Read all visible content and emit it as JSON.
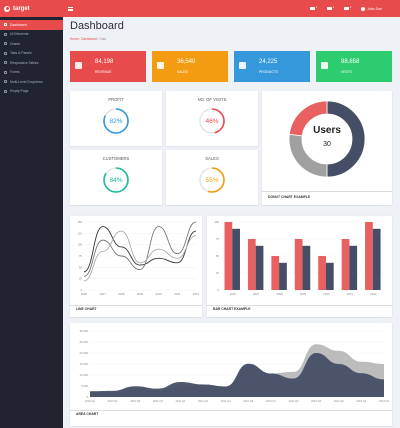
{
  "app": {
    "brand": "target",
    "user_name": "John Doe"
  },
  "sidebar": {
    "items": [
      {
        "label": "Dashboard",
        "active": true
      },
      {
        "label": "UI Elements"
      },
      {
        "label": "Charts"
      },
      {
        "label": "Tabs & Panels"
      },
      {
        "label": "Responsive Tables"
      },
      {
        "label": "Forms"
      },
      {
        "label": "Multi-Level Dropdown"
      },
      {
        "label": "Empty Page"
      }
    ]
  },
  "page": {
    "title": "Dashboard",
    "breadcrumb": [
      "Home",
      "Dashboard",
      "Data"
    ]
  },
  "stats": [
    {
      "value": "84,198",
      "label": "REVENUE",
      "color": "#e84b4b",
      "icon": "revenue-icon"
    },
    {
      "value": "36,540",
      "label": "SALES",
      "color": "#f39c12",
      "icon": "cart-icon"
    },
    {
      "value": "24,225",
      "label": "PRODUCTS",
      "color": "#3498db",
      "icon": "products-icon"
    },
    {
      "value": "88,658",
      "label": "VISITS",
      "color": "#2ecc71",
      "icon": "visits-icon"
    }
  ],
  "gauges": [
    {
      "title": "PROFIT",
      "value": 82,
      "display": "82%",
      "color": "#3498db"
    },
    {
      "title": "NO. OF VISITS",
      "value": 46,
      "display": "46%",
      "color": "#e84b4b"
    },
    {
      "title": "CUSTOMERS",
      "value": 84,
      "display": "84%",
      "color": "#1abc9c"
    },
    {
      "title": "SALES",
      "value": 55,
      "display": "55%",
      "color": "#f39c12"
    }
  ],
  "donut": {
    "title": "DONUT CHART EXAMPLE",
    "center_label": "Users",
    "center_value": "30",
    "chart_data": {
      "type": "pie",
      "values": [
        50,
        27,
        23
      ],
      "colors": [
        "#454e66",
        "#a0a0a0",
        "#e86060"
      ]
    }
  },
  "line_chart": {
    "title": "LINE CHART",
    "chart_data": {
      "type": "line",
      "x": [
        "2006",
        "2007",
        "2008",
        "2009",
        "2010",
        "2011",
        "2012"
      ],
      "yticks": [
        "0",
        "25",
        "50",
        "75",
        "100",
        "125",
        "150"
      ],
      "ylim": [
        0,
        150
      ],
      "series": [
        {
          "values": [
            40,
            140,
            95,
            55,
            70,
            60,
            130
          ],
          "color": "#333333"
        },
        {
          "values": [
            30,
            110,
            75,
            45,
            140,
            80,
            150
          ],
          "color": "#777777"
        },
        {
          "values": [
            20,
            85,
            130,
            60,
            90,
            70,
            120
          ],
          "color": "#aaaaaa"
        }
      ]
    }
  },
  "bar_chart": {
    "title": "BAR CHART EXAMPLE",
    "chart_data": {
      "type": "bar",
      "categories": [
        "2006",
        "2007",
        "2008",
        "2009",
        "2010",
        "2011",
        "2012"
      ],
      "yticks": [
        "0",
        "25",
        "50",
        "75",
        "100"
      ],
      "ylim": [
        0,
        100
      ],
      "series": [
        {
          "values": [
            100,
            75,
            50,
            75,
            50,
            75,
            100
          ],
          "color": "#e86060"
        },
        {
          "values": [
            90,
            65,
            40,
            65,
            40,
            65,
            90
          ],
          "color": "#454e66"
        }
      ]
    }
  },
  "area_chart": {
    "title": "AREA CHART",
    "chart_data": {
      "type": "area",
      "x": [
        "2010 Q1",
        "2010 Q2",
        "2010 Q3",
        "2010 Q4",
        "2011 Q1",
        "2011 Q2",
        "2011 Q3",
        "2011 Q4",
        "2012 Q1",
        "2012 Q2",
        "2012 Q3",
        "2012 Q4",
        "2013 Q1",
        "2013 Q2"
      ],
      "yticks": [
        "0",
        "5,000",
        "10,000",
        "15,000",
        "20,000",
        "25,000",
        "30,000"
      ],
      "ylim": [
        0,
        30000
      ],
      "series": [
        {
          "values": [
            2600,
            2800,
            4900,
            3800,
            6800,
            5700,
            4800,
            15100,
            10700,
            8400,
            20000,
            15000,
            10800,
            8000
          ],
          "color": "#454e66"
        },
        {
          "values": [
            2600,
            2300,
            3900,
            2800,
            4500,
            5700,
            4800,
            15100,
            10700,
            11400,
            24000,
            21000,
            16000,
            15000
          ],
          "color": "#b8b8b8"
        }
      ]
    }
  }
}
